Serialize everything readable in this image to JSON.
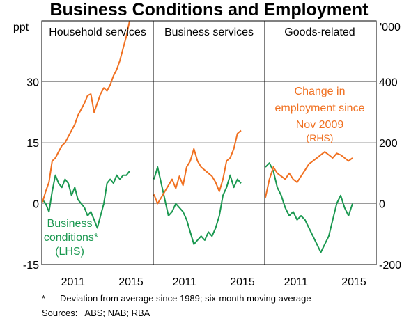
{
  "chart_data": {
    "type": "line",
    "title": "Business Conditions and Employment",
    "left_axis": {
      "unit": "ppt",
      "ticks": [
        -15,
        0,
        15,
        30
      ],
      "range": [
        -15,
        45
      ]
    },
    "right_axis": {
      "unit": "'000",
      "ticks": [
        -200,
        0,
        200,
        400
      ],
      "range": [
        -200,
        600
      ]
    },
    "x_ticks": [
      "2011",
      "2015"
    ],
    "panels": [
      {
        "name": "Household services",
        "series": [
          {
            "name": "Business conditions",
            "axis": "left",
            "color": "#1a9850",
            "values": [
              1,
              0,
              -2,
              3,
              7,
              5,
              4,
              6,
              5,
              2,
              4,
              1,
              0,
              -1,
              -3,
              -2,
              -4,
              -6,
              -3,
              0,
              5,
              6,
              5,
              7,
              6,
              7,
              7,
              8
            ]
          },
          {
            "name": "Change in employment since Nov 2009",
            "axis": "right",
            "color": "#f07020",
            "values": [
              5,
              40,
              70,
              140,
              150,
              170,
              190,
              200,
              220,
              240,
              260,
              290,
              310,
              330,
              355,
              360,
              300,
              330,
              360,
              380,
              370,
              390,
              420,
              440,
              470,
              510,
              550,
              600
            ]
          }
        ]
      },
      {
        "name": "Business services",
        "series": [
          {
            "name": "Business conditions",
            "axis": "left",
            "color": "#1a9850",
            "values": [
              6,
              9,
              5,
              1,
              -3,
              -2,
              0,
              -1,
              -2,
              -4,
              -7,
              -10,
              -9,
              -8,
              -9,
              -7,
              -8,
              -6,
              -3,
              2,
              4,
              7,
              4,
              6,
              5
            ]
          },
          {
            "name": "Change in employment since Nov 2009",
            "axis": "right",
            "color": "#f07020",
            "values": [
              30,
              0,
              20,
              40,
              60,
              80,
              50,
              90,
              60,
              120,
              140,
              180,
              140,
              120,
              110,
              100,
              90,
              70,
              40,
              80,
              140,
              150,
              180,
              230,
              240
            ]
          }
        ]
      },
      {
        "name": "Goods-related",
        "series": [
          {
            "name": "Business conditions",
            "axis": "left",
            "color": "#1a9850",
            "values": [
              9,
              10,
              8,
              4,
              2,
              -1,
              -3,
              -2,
              -4,
              -3,
              -4,
              -6,
              -8,
              -10,
              -12,
              -10,
              -8,
              -4,
              0,
              2,
              -1,
              -3,
              0
            ]
          },
          {
            "name": "Change in employment since Nov 2009",
            "axis": "right",
            "color": "#f07020",
            "values": [
              20,
              80,
              120,
              100,
              90,
              80,
              100,
              80,
              70,
              90,
              110,
              130,
              140,
              150,
              160,
              170,
              160,
              150,
              165,
              160,
              150,
              140,
              150
            ]
          }
        ]
      }
    ]
  },
  "annotations": {
    "green_line1": "Business",
    "green_line2": "conditions*",
    "green_line3": "(LHS)",
    "orange_line1": "Change in",
    "orange_line2": "employment since",
    "orange_line3": "Nov 2009",
    "orange_line4": "(RHS)"
  },
  "footnotes": {
    "note_marker": "*",
    "note_text": "Deviation from average since 1989; six-month moving average",
    "sources": "Sources:   ABS; NAB; RBA"
  }
}
